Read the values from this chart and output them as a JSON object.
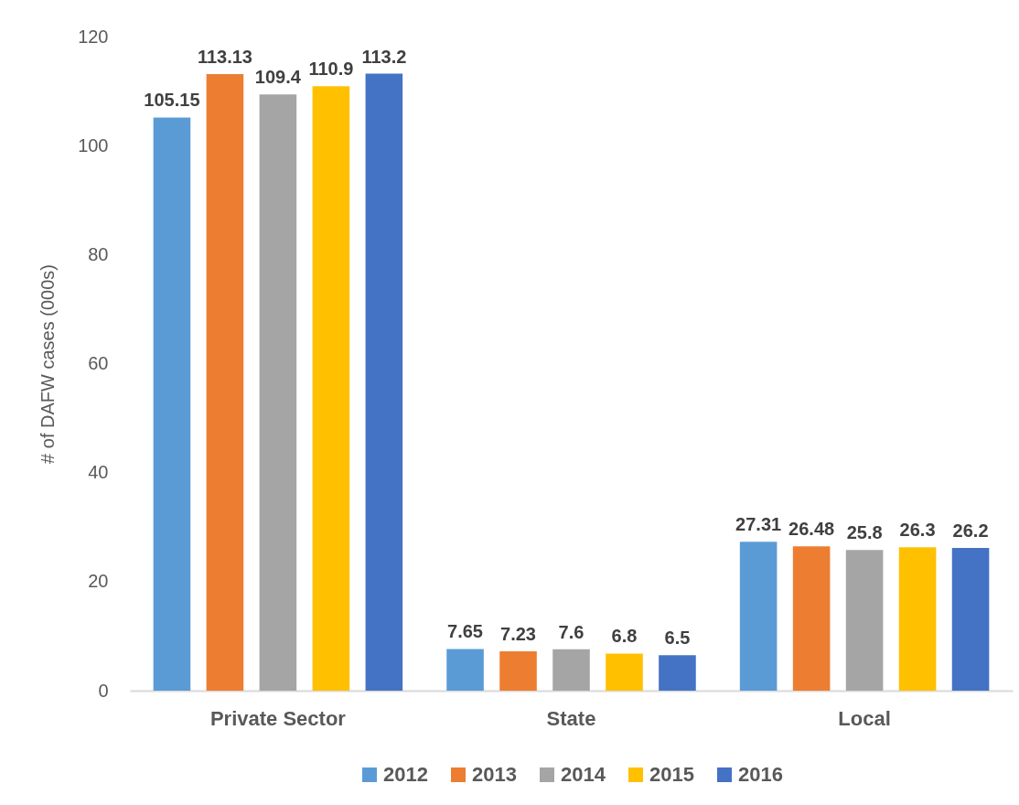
{
  "chart_data": {
    "type": "bar",
    "ylabel": "# of DAFW cases (000s)",
    "categories": [
      "Private Sector",
      "State",
      "Local"
    ],
    "series": [
      {
        "name": "2012",
        "color": "#5b9bd5",
        "values": [
          105.15,
          7.65,
          27.31
        ]
      },
      {
        "name": "2013",
        "color": "#ed7d31",
        "values": [
          113.13,
          7.23,
          26.48
        ]
      },
      {
        "name": "2014",
        "color": "#a5a5a5",
        "values": [
          109.4,
          7.6,
          25.8
        ]
      },
      {
        "name": "2015",
        "color": "#ffc000",
        "values": [
          110.9,
          6.8,
          26.3
        ]
      },
      {
        "name": "2016",
        "color": "#4472c4",
        "values": [
          113.2,
          6.5,
          26.2
        ]
      }
    ],
    "ylim": [
      0,
      120
    ],
    "yticks": [
      0,
      20,
      40,
      60,
      80,
      100,
      120
    ],
    "data_labels": true,
    "legend": "bottom"
  }
}
